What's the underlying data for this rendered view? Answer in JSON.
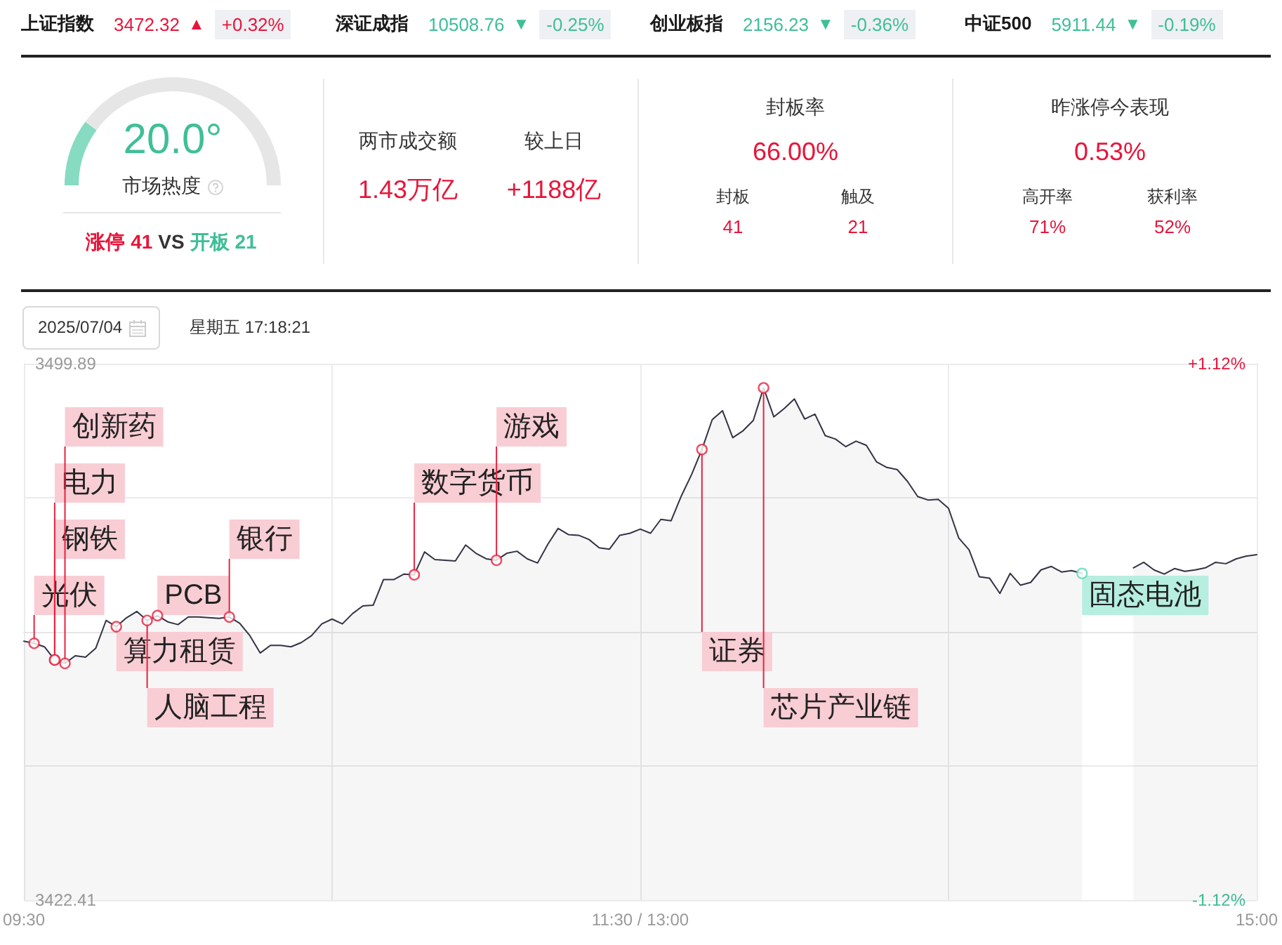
{
  "chart_data": [
    {
      "type": "other",
      "annotations": [
        "上证指数",
        "3472.32",
        "▲",
        "+0.32%",
        "深证成指",
        "10508.76",
        "▼",
        "-0.25%",
        "创业板指",
        "2156.23",
        "▼",
        "-0.36%",
        "中证500",
        "5911.44",
        "▼",
        "-0.19%"
      ],
      "colors": [
        "#e6163b",
        "#3fbf96",
        "#3fbf96",
        "#3fbf96"
      ]
    },
    {
      "type": "donut",
      "title": "20.0°",
      "subtitle": "市场热度",
      "categories": [
        null,
        null
      ],
      "values": [
        20,
        80
      ],
      "colors": [
        "#86dbc0",
        "#e6e6e6"
      ],
      "annotations": [
        "涨停 41",
        "VS",
        "开板 21"
      ]
    },
    {
      "type": "other",
      "annotations": [
        "两市成交额",
        "1.43万亿",
        "较上日",
        "+1188亿"
      ]
    },
    {
      "type": "other",
      "title": "封板率",
      "annotations": [
        "66.00%",
        "封板",
        "41",
        "触及",
        "21"
      ]
    },
    {
      "type": "other",
      "title": "昨涨停今表现",
      "annotations": [
        "0.53%",
        "高开率",
        "71%",
        "获利率",
        "52%"
      ]
    },
    {
      "type": "other",
      "annotations": [
        "2025/07/04",
        "星期五 17:18:21"
      ]
    },
    {
      "type": "area",
      "categories": [
        "09:30",
        null,
        null,
        null,
        null,
        null,
        null,
        null,
        null,
        null,
        null,
        null,
        null,
        null,
        null,
        null,
        null,
        null,
        null,
        null,
        null,
        null,
        null,
        null,
        null,
        null,
        null,
        null,
        null,
        null,
        null,
        null,
        null,
        null,
        null,
        null,
        null,
        null,
        null,
        null,
        null,
        null,
        null,
        null,
        null,
        null,
        null,
        null,
        null,
        null,
        null,
        null,
        null,
        null,
        null,
        null,
        null,
        null,
        null,
        null,
        "11:30 / 13:00",
        null,
        null,
        null,
        null,
        null,
        null,
        null,
        null,
        null,
        null,
        null,
        null,
        null,
        null,
        null,
        null,
        null,
        null,
        null,
        null,
        null,
        null,
        null,
        null,
        null,
        null,
        null,
        null,
        null,
        null,
        null,
        null,
        null,
        null,
        null,
        null,
        null,
        null,
        null,
        null,
        null,
        null,
        null,
        null,
        null,
        null,
        null,
        null,
        null,
        null,
        null,
        null,
        null,
        null,
        null,
        null,
        null,
        null,
        null,
        "15:00"
      ],
      "ylim": [
        3422.41,
        3499.89
      ],
      "yticks": [
        3422.41,
        {
          "value": 3441.78,
          "label": null
        },
        {
          "value": 3461.15,
          "label": null
        },
        {
          "value": 3480.52,
          "label": null
        },
        3499.89
      ],
      "y2lim": [
        -1.12,
        1.12
      ],
      "y2ticks": [
        {
          "value": -1.12,
          "label": "-1.12%"
        },
        {
          "value": 1.12,
          "label": "+1.12%"
        }
      ],
      "grid": true,
      "series": [
        {
          "color": "#333344",
          "values": [
            3459.8,
            3459.5,
            3459.0,
            3457.1,
            3456.6,
            3457.7,
            3457.5,
            3458.8,
            3462.8,
            3461.9,
            3463.2,
            3464.1,
            3462.8,
            3463.5,
            3462.6,
            3462.2,
            3463.3,
            3463.3,
            3463.2,
            3463.1,
            3463.3,
            3462.4,
            3460.6,
            3458.1,
            3459.2,
            3459.2,
            3459.0,
            3459.6,
            3460.6,
            3462.3,
            3463.0,
            3462.3,
            3463.8,
            3464.9,
            3465.0,
            3468.7,
            3468.7,
            3469.5,
            3469.4,
            3472.7,
            3471.6,
            3471.5,
            3471.4,
            3473.7,
            3472.5,
            3471.7,
            3471.5,
            3472.5,
            3472.8,
            3471.7,
            3471.1,
            3473.8,
            3476.1,
            3475.2,
            3475.1,
            3474.5,
            3473.3,
            3473.1,
            3475.1,
            3475.4,
            3476.0,
            3475.4,
            3477.4,
            3477.2,
            3480.8,
            3483.9,
            3487.5,
            3491.8,
            3493.1,
            3489.2,
            3490.2,
            3491.7,
            3496.4,
            3492.2,
            3493.4,
            3494.8,
            3491.9,
            3492.6,
            3489.5,
            3489.0,
            3487.9,
            3488.7,
            3488.1,
            3485.7,
            3484.9,
            3484.6,
            3482.9,
            3480.7,
            3480.2,
            3480.3,
            3479.0,
            3474.7,
            3473.0,
            3469.1,
            3468.9,
            3466.7,
            3469.6,
            3467.9,
            3468.3,
            3470.1,
            3470.6,
            3469.8,
            3470.0,
            3469.6,
            null,
            null,
            null,
            null,
            3470.4,
            3471.2,
            3470.1,
            3469.5,
            3470.3,
            3469.9,
            3470.1,
            3470.4,
            3471.2,
            3471.0,
            3471.7,
            3472.1,
            3472.3
          ]
        },
        {
          "type": "scatter",
          "color": "#e62340",
          "marker": "circle",
          "values": [
            null,
            3459.5,
            null,
            3457.1,
            3456.6,
            null,
            null,
            null,
            null,
            3461.9,
            null,
            null,
            3462.8,
            3463.5,
            null,
            null,
            null,
            null,
            null,
            null,
            3463.3,
            null,
            null,
            null,
            null,
            null,
            null,
            null,
            null,
            null,
            null,
            null,
            null,
            null,
            null,
            null,
            null,
            null,
            3469.4,
            null,
            null,
            null,
            null,
            null,
            null,
            null,
            3471.5,
            null,
            null,
            null,
            null,
            null,
            null,
            null,
            null,
            null,
            null,
            null,
            null,
            null,
            null,
            null,
            null,
            null,
            null,
            null,
            3487.5,
            null,
            null,
            null,
            null,
            null,
            3496.4,
            null,
            null,
            null,
            null,
            null,
            null,
            null,
            null,
            null,
            null,
            null,
            null,
            null,
            null,
            null,
            null,
            null,
            null,
            null,
            null,
            null,
            null,
            null,
            null,
            null,
            null,
            null,
            null,
            null,
            null,
            null,
            null,
            null,
            null,
            null,
            null,
            null,
            null,
            null,
            null,
            null,
            null,
            null,
            null,
            null,
            null,
            null,
            null
          ],
          "value_labels": [
            null,
            "光伏",
            null,
            "电力",
            "创新药",
            null,
            null,
            null,
            null,
            "算力租赁",
            null,
            null,
            "人脑工程",
            "PCB",
            null,
            null,
            null,
            null,
            null,
            null,
            "银行",
            null,
            null,
            null,
            null,
            null,
            null,
            null,
            null,
            null,
            null,
            null,
            null,
            null,
            null,
            null,
            null,
            null,
            "数字货币",
            null,
            null,
            null,
            null,
            null,
            null,
            null,
            "游戏",
            null,
            null,
            null,
            null,
            null,
            null,
            null,
            null,
            null,
            null,
            null,
            null,
            null,
            null,
            null,
            null,
            null,
            null,
            null,
            "证券",
            null,
            null,
            null,
            null,
            null,
            "芯片产业链",
            null,
            null,
            null,
            null,
            null,
            null,
            null,
            null,
            null,
            null,
            null,
            null,
            null,
            null,
            null,
            null,
            null,
            null,
            null,
            null,
            null,
            null,
            null,
            null,
            null,
            null,
            null,
            null,
            null,
            null,
            null,
            null,
            null,
            null,
            null,
            null,
            null,
            null,
            null,
            null,
            null,
            null,
            null,
            null,
            null,
            null,
            null,
            null
          ]
        },
        {
          "type": "scatter",
          "color": "#e62340",
          "marker": "circle",
          "values": [
            null,
            null,
            null,
            3457.1,
            null,
            null,
            null,
            null,
            null,
            null,
            null,
            null,
            null,
            null,
            null,
            null,
            null,
            null,
            null,
            null,
            null,
            null,
            null,
            null,
            null,
            null,
            null,
            null,
            null,
            null,
            null,
            null,
            null,
            null,
            null,
            null,
            null,
            null,
            null,
            null,
            null,
            null,
            null,
            null,
            null,
            null,
            null,
            null,
            null,
            null,
            null,
            null,
            null,
            null,
            null,
            null,
            null,
            null,
            null,
            null,
            null,
            null,
            null,
            null,
            null,
            null,
            null,
            null,
            null,
            null,
            null,
            null,
            null,
            null,
            null,
            null,
            null,
            null,
            null,
            null,
            null,
            null,
            null,
            null,
            null,
            null,
            null,
            null,
            null,
            null,
            null,
            null,
            null,
            null,
            null,
            null,
            null,
            null,
            null,
            null,
            null,
            null,
            null,
            null,
            null,
            null,
            null,
            null,
            null,
            null,
            null,
            null,
            null,
            null,
            null,
            null,
            null,
            null,
            null,
            null,
            null
          ],
          "value_labels": [
            null,
            null,
            null,
            "钢铁",
            null,
            null,
            null,
            null,
            null,
            null,
            null,
            null,
            null,
            null,
            null,
            null,
            null,
            null,
            null,
            null,
            null,
            null,
            null,
            null,
            null,
            null,
            null,
            null,
            null,
            null,
            null,
            null,
            null,
            null,
            null,
            null,
            null,
            null,
            null,
            null,
            null,
            null,
            null,
            null,
            null,
            null,
            null,
            null,
            null,
            null,
            null,
            null,
            null,
            null,
            null,
            null,
            null,
            null,
            null,
            null,
            null,
            null,
            null,
            null,
            null,
            null,
            null,
            null,
            null,
            null,
            null,
            null,
            null,
            null,
            null,
            null,
            null,
            null,
            null,
            null,
            null,
            null,
            null,
            null,
            null,
            null,
            null,
            null,
            null,
            null,
            null,
            null,
            null,
            null,
            null,
            null,
            null,
            null,
            null,
            null,
            null,
            null,
            null,
            null,
            null,
            null,
            null,
            null,
            null,
            null,
            null,
            null,
            null,
            null,
            null,
            null,
            null,
            null,
            null,
            null,
            null
          ]
        },
        {
          "type": "scatter",
          "color": "#5dd9b8",
          "marker": "circle",
          "values": [
            null,
            null,
            null,
            null,
            null,
            null,
            null,
            null,
            null,
            null,
            null,
            null,
            null,
            null,
            null,
            null,
            null,
            null,
            null,
            null,
            null,
            null,
            null,
            null,
            null,
            null,
            null,
            null,
            null,
            null,
            null,
            null,
            null,
            null,
            null,
            null,
            null,
            null,
            null,
            null,
            null,
            null,
            null,
            null,
            null,
            null,
            null,
            null,
            null,
            null,
            null,
            null,
            null,
            null,
            null,
            null,
            null,
            null,
            null,
            null,
            null,
            null,
            null,
            null,
            null,
            null,
            null,
            null,
            null,
            null,
            null,
            null,
            null,
            null,
            null,
            null,
            null,
            null,
            null,
            null,
            null,
            null,
            null,
            null,
            null,
            null,
            null,
            null,
            null,
            null,
            null,
            null,
            null,
            null,
            null,
            null,
            null,
            null,
            null,
            null,
            null,
            null,
            null,
            3469.6,
            null,
            null,
            null,
            null,
            null,
            null,
            null,
            null,
            null,
            null,
            null,
            null,
            null,
            null,
            null,
            null,
            null
          ],
          "value_labels": [
            null,
            null,
            null,
            null,
            null,
            null,
            null,
            null,
            null,
            null,
            null,
            null,
            null,
            null,
            null,
            null,
            null,
            null,
            null,
            null,
            null,
            null,
            null,
            null,
            null,
            null,
            null,
            null,
            null,
            null,
            null,
            null,
            null,
            null,
            null,
            null,
            null,
            null,
            null,
            null,
            null,
            null,
            null,
            null,
            null,
            null,
            null,
            null,
            null,
            null,
            null,
            null,
            null,
            null,
            null,
            null,
            null,
            null,
            null,
            null,
            null,
            null,
            null,
            null,
            null,
            null,
            null,
            null,
            null,
            null,
            null,
            null,
            null,
            null,
            null,
            null,
            null,
            null,
            null,
            null,
            null,
            null,
            null,
            null,
            null,
            null,
            null,
            null,
            null,
            null,
            null,
            null,
            null,
            null,
            null,
            null,
            null,
            null,
            null,
            null,
            null,
            null,
            null,
            "固态电池",
            null,
            null,
            null,
            null,
            null,
            null,
            null,
            null,
            null,
            null,
            null,
            null,
            null,
            null,
            null,
            null,
            null
          ]
        }
      ]
    }
  ]
}
